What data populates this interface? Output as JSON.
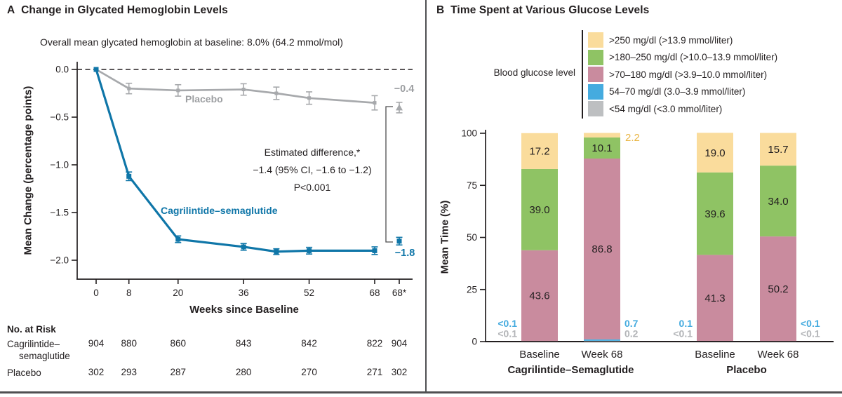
{
  "colors": {
    "text_dark": "#231f20",
    "treatment_blue": "#0f76a8",
    "placebo_gray": "#a7a9ac",
    "placebo_label_gray": "#9d9fa2",
    "bracket_gray": "#4d4d4f",
    "bar_yellow": "#fadc9c",
    "bar_green": "#8fc364",
    "bar_pink": "#c98b9e",
    "bar_blue": "#45abdf",
    "bar_gray": "#bdbfc1",
    "mustard_label": "#e9b646",
    "small_gray_label": "#b3b5b8",
    "rule_gray": "#4f5052"
  },
  "panelA": {
    "label": "A",
    "title": "Change in Glycated Hemoglobin Levels",
    "subtitle": "Overall mean glycated hemoglobin at baseline: 8.0% (64.2 mmol/mol)",
    "ylabel": "Mean Change (percentage points)",
    "xlabel": "Weeks since Baseline",
    "series_labels": {
      "placebo": "Placebo",
      "treatment": "Cagrilintide–semaglutide"
    },
    "endpoint_labels": {
      "placebo": "−0.4",
      "treatment": "−1.8"
    },
    "annotation": {
      "line1": "Estimated difference,*",
      "line2": "−1.4 (95% CI, −1.6 to −1.2)",
      "line3": "P<0.001"
    },
    "risk_table": {
      "header": "No. at Risk",
      "rows": [
        {
          "name_line1": "Cagrilintide–",
          "name_line2": "semaglutide",
          "values": [
            "904",
            "880",
            "860",
            "843",
            "842",
            "822",
            "904"
          ]
        },
        {
          "name_line1": "Placebo",
          "name_line2": "",
          "values": [
            "302",
            "293",
            "287",
            "280",
            "270",
            "271",
            "302"
          ]
        }
      ]
    }
  },
  "panelB": {
    "label": "B",
    "title": "Time Spent at Various Glucose Levels",
    "ylabel": "Mean Time (%)",
    "legend": {
      "title": "Blood glucose level",
      "items": [
        {
          "color": "#fadc9c",
          "label": ">250 mg/dl (>13.9 mmol/liter)"
        },
        {
          "color": "#8fc364",
          "label": ">180–250 mg/dl (>10.0–13.9 mmol/liter)"
        },
        {
          "color": "#c98b9e",
          "label": ">70–180 mg/dl (>3.9–10.0 mmol/liter)"
        },
        {
          "color": "#45abdf",
          "label": "54–70 mg/dl (3.0–3.9 mmol/liter)"
        },
        {
          "color": "#bdbfc1",
          "label": "<54 mg/dl (<3.0 mmol/liter)"
        }
      ]
    },
    "groups": [
      "Cagrilintide–Semaglutide",
      "Placebo"
    ],
    "bar_categories": [
      "Baseline",
      "Week 68",
      "Baseline",
      "Week 68"
    ]
  },
  "chart_data": [
    {
      "type": "line",
      "title": "Change in Glycated Hemoglobin Levels",
      "xlabel": "Weeks since Baseline",
      "ylabel": "Mean Change (percentage points)",
      "x_weeks": [
        0,
        8,
        20,
        36,
        44,
        52,
        68
      ],
      "xticks": [
        {
          "week": 0,
          "label": "0"
        },
        {
          "week": 8,
          "label": "8"
        },
        {
          "week": 20,
          "label": "20"
        },
        {
          "week": 36,
          "label": "36"
        },
        {
          "week": 52,
          "label": "52"
        },
        {
          "week": 68,
          "label": "68"
        },
        {
          "week": "68*",
          "label": "68*"
        }
      ],
      "yticks": [
        {
          "value": 0.0,
          "label": "0.0"
        },
        {
          "value": -0.5,
          "label": "−0.5"
        },
        {
          "value": -1.0,
          "label": "−1.0"
        },
        {
          "value": -1.5,
          "label": "−1.5"
        },
        {
          "value": -2.0,
          "label": "−2.0"
        }
      ],
      "ylim": [
        -2.2,
        0.1
      ],
      "grid": false,
      "series": [
        {
          "name": "Placebo",
          "color": "#a7a9ac",
          "values": [
            0.0,
            -0.2,
            -0.22,
            -0.21,
            -0.25,
            -0.3,
            -0.35
          ],
          "errors": [
            0,
            0.055,
            0.06,
            0.06,
            0.065,
            0.065,
            0.075
          ],
          "endpoint_68star": {
            "value": -0.4,
            "error": 0.055,
            "label": "−0.4",
            "marker": "triangle"
          }
        },
        {
          "name": "Cagrilintide–semaglutide",
          "color": "#0f76a8",
          "values": [
            0.0,
            -1.12,
            -1.78,
            -1.86,
            -1.91,
            -1.9,
            -1.9
          ],
          "errors": [
            0,
            0.045,
            0.035,
            0.035,
            0.03,
            0.035,
            0.04
          ],
          "endpoint_68star": {
            "value": -1.8,
            "error": 0.04,
            "label": "−1.8",
            "marker": "square"
          }
        }
      ],
      "annotation": "Estimated difference,* −1.4 (95% CI, −1.6 to −1.2) P<0.001",
      "no_at_risk": {
        "Cagrilintide–semaglutide": [
          904,
          880,
          860,
          843,
          842,
          822,
          904
        ],
        "Placebo": [
          302,
          293,
          287,
          280,
          270,
          271,
          302
        ]
      }
    },
    {
      "type": "bar",
      "subtype": "stacked",
      "title": "Time Spent at Various Glucose Levels",
      "ylabel": "Mean Time (%)",
      "ylim": [
        0,
        100
      ],
      "yticks": [
        {
          "value": 0,
          "label": "0"
        },
        {
          "value": 25,
          "label": "25"
        },
        {
          "value": 50,
          "label": "50"
        },
        {
          "value": 75,
          "label": "75"
        },
        {
          "value": 100,
          "label": "100"
        }
      ],
      "segment_order_bottom_up": [
        "lt54",
        "s54_70",
        "s70_180",
        "s180_250",
        "gt250"
      ],
      "segment_colors": {
        "gt250": "#fadc9c",
        "s180_250": "#8fc364",
        "s70_180": "#c98b9e",
        "s54_70": "#45abdf",
        "lt54": "#bdbfc1"
      },
      "bars": [
        {
          "group": "Cagrilintide–Semaglutide",
          "category": "Baseline",
          "segments": {
            "gt250": {
              "value": 17.2,
              "label": "17.2",
              "label_pos": "inside"
            },
            "s180_250": {
              "value": 39.0,
              "label": "39.0",
              "label_pos": "inside"
            },
            "s70_180": {
              "value": 43.6,
              "label": "43.6",
              "label_pos": "inside"
            },
            "s54_70": {
              "value": 0.05,
              "label": "<0.1",
              "label_pos": "left"
            },
            "lt54": {
              "value": 0.05,
              "label": "<0.1",
              "label_pos": "left"
            }
          }
        },
        {
          "group": "Cagrilintide–Semaglutide",
          "category": "Week 68",
          "segments": {
            "gt250": {
              "value": 2.2,
              "label": "2.2",
              "label_pos": "right_top"
            },
            "s180_250": {
              "value": 10.1,
              "label": "10.1",
              "label_pos": "inside"
            },
            "s70_180": {
              "value": 86.8,
              "label": "86.8",
              "label_pos": "inside"
            },
            "s54_70": {
              "value": 0.7,
              "label": "0.7",
              "label_pos": "right"
            },
            "lt54": {
              "value": 0.2,
              "label": "0.2",
              "label_pos": "right"
            }
          }
        },
        {
          "group": "Placebo",
          "category": "Baseline",
          "segments": {
            "gt250": {
              "value": 19.0,
              "label": "19.0",
              "label_pos": "inside"
            },
            "s180_250": {
              "value": 39.6,
              "label": "39.6",
              "label_pos": "inside"
            },
            "s70_180": {
              "value": 41.3,
              "label": "41.3",
              "label_pos": "inside"
            },
            "s54_70": {
              "value": 0.1,
              "label": "0.1",
              "label_pos": "left"
            },
            "lt54": {
              "value": 0.05,
              "label": "<0.1",
              "label_pos": "left"
            }
          }
        },
        {
          "group": "Placebo",
          "category": "Week 68",
          "segments": {
            "gt250": {
              "value": 15.7,
              "label": "15.7",
              "label_pos": "inside"
            },
            "s180_250": {
              "value": 34.0,
              "label": "34.0",
              "label_pos": "inside"
            },
            "s70_180": {
              "value": 50.2,
              "label": "50.2",
              "label_pos": "inside"
            },
            "s54_70": {
              "value": 0.05,
              "label": "<0.1",
              "label_pos": "right"
            },
            "lt54": {
              "value": 0.05,
              "label": "<0.1",
              "label_pos": "right"
            }
          }
        }
      ]
    }
  ]
}
